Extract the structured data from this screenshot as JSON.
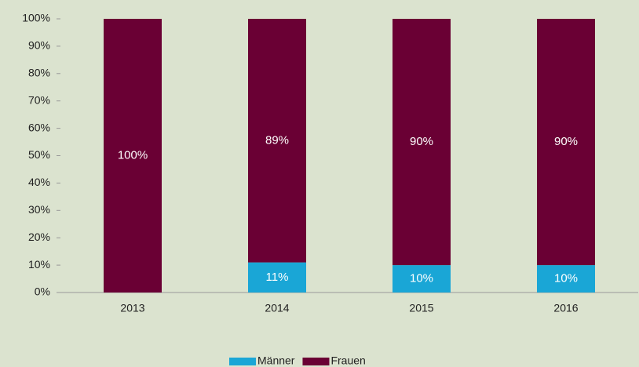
{
  "chart_data": {
    "type": "stacked_bar",
    "categories": [
      "2013",
      "2014",
      "2015",
      "2016"
    ],
    "series": [
      {
        "name": "Männer",
        "color": "#1aa6d6",
        "values": [
          0,
          11,
          10,
          10
        ],
        "value_labels": [
          null,
          "11%",
          "10%",
          "10%"
        ]
      },
      {
        "name": "Frauen",
        "color": "#6a0034",
        "values": [
          100,
          89,
          90,
          90
        ],
        "value_labels": [
          "100%",
          "89%",
          "90%",
          "90%"
        ]
      }
    ],
    "ylim": [
      0,
      100
    ],
    "yticks": [
      {
        "value": 0,
        "label": "0%"
      },
      {
        "value": 10,
        "label": "10%"
      },
      {
        "value": 20,
        "label": "20%"
      },
      {
        "value": 30,
        "label": "30%"
      },
      {
        "value": 40,
        "label": "40%"
      },
      {
        "value": 50,
        "label": "50%"
      },
      {
        "value": 60,
        "label": "60%"
      },
      {
        "value": 70,
        "label": "70%"
      },
      {
        "value": 80,
        "label": "80%"
      },
      {
        "value": 90,
        "label": "90%"
      },
      {
        "value": 100,
        "label": "100%"
      }
    ],
    "legend": "bottom"
  }
}
